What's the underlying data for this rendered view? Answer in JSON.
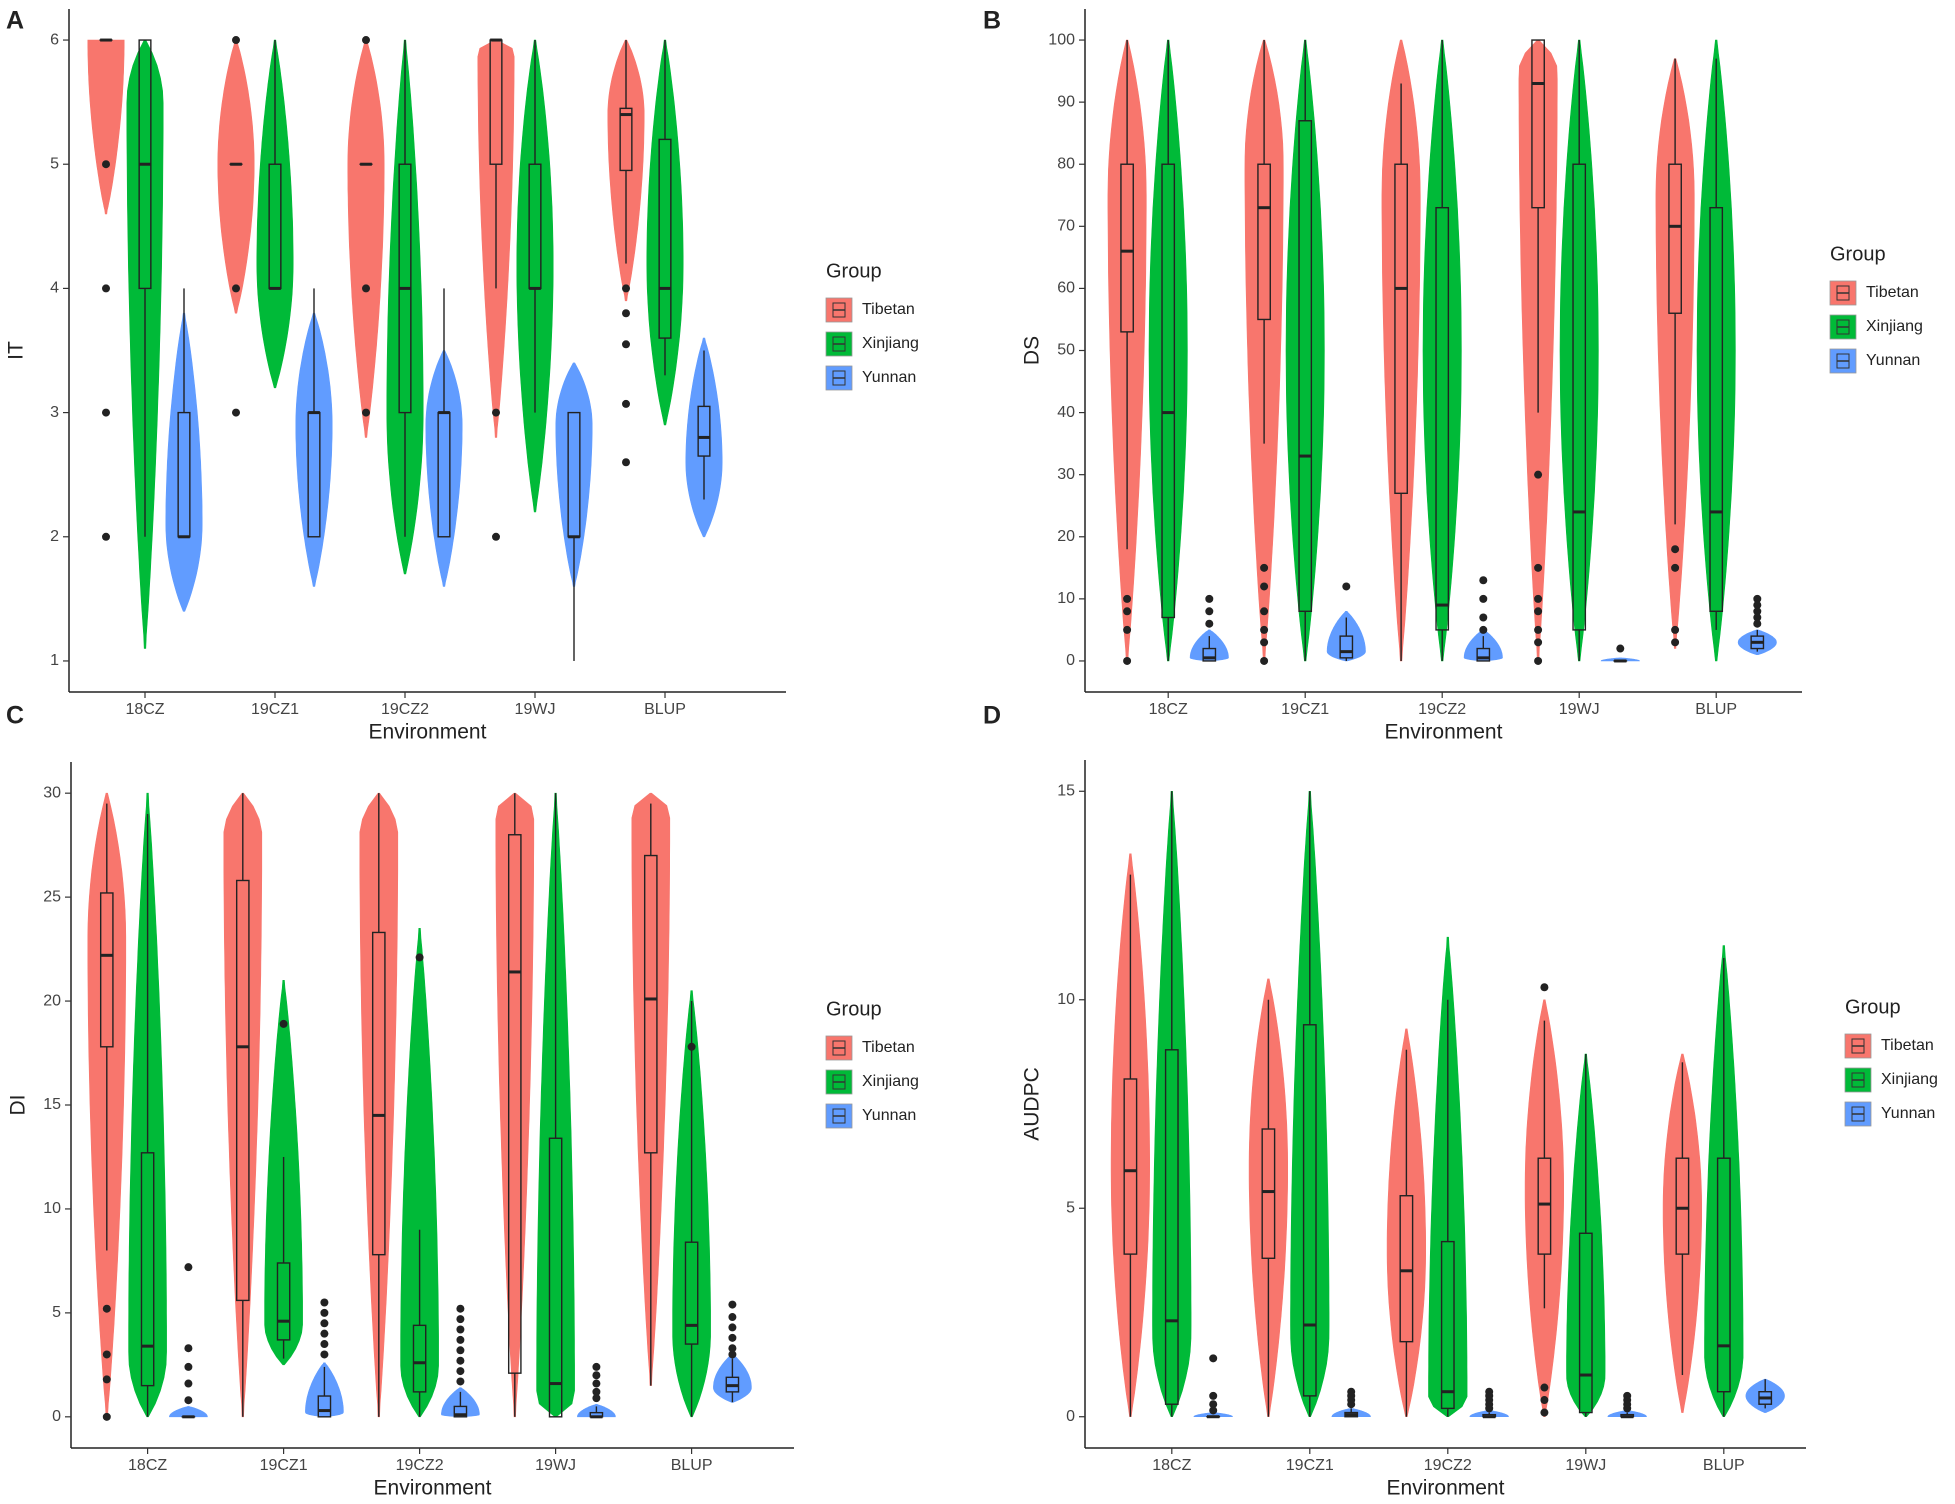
{
  "chart_data": [
    {
      "type": "violin",
      "panel_label": "A",
      "y_label": "IT",
      "x_label": "Environment",
      "legend_title": "Group",
      "categories": [
        "18CZ",
        "19CZ1",
        "19CZ2",
        "19WJ",
        "BLUP"
      ],
      "ylim": [
        0.75,
        6.25
      ],
      "yticks": [
        1,
        2,
        3,
        4,
        5,
        6
      ],
      "series": [
        {
          "name": "Tibetan",
          "color": "#f8766d",
          "min": [
            6,
            5,
            5,
            4,
            4.2
          ],
          "q1": [
            6,
            5,
            5,
            5,
            4.95
          ],
          "median": [
            6,
            5,
            5,
            6,
            5.4
          ],
          "q3": [
            6,
            5,
            5,
            6,
            5.45
          ],
          "max": [
            6,
            5,
            5,
            6,
            6
          ],
          "violin_lo": [
            4.6,
            3.8,
            2.8,
            2.8,
            3.9
          ],
          "violin_hi": [
            6,
            6,
            6,
            6,
            6
          ],
          "violin_peak": [
            6,
            5,
            5,
            5.9,
            5.4
          ],
          "outliers": [
            [
              5,
              4,
              3,
              2
            ],
            [
              6,
              4,
              3
            ],
            [
              6,
              4,
              3
            ],
            [
              3,
              2
            ],
            [
              4.0,
              3.8,
              3.55,
              3.07,
              2.6
            ]
          ]
        },
        {
          "name": "Xinjiang",
          "color": "#00ba38",
          "min": [
            2,
            4,
            2,
            3,
            3.3
          ],
          "q1": [
            4,
            4,
            3,
            4,
            3.6
          ],
          "median": [
            5,
            4,
            4,
            4,
            4.0
          ],
          "q3": [
            6,
            5,
            5,
            5,
            5.2
          ],
          "max": [
            6,
            6,
            6,
            6,
            6
          ],
          "violin_lo": [
            1.1,
            3.2,
            1.7,
            2.2,
            2.9
          ],
          "violin_hi": [
            6,
            6,
            6,
            6,
            6
          ],
          "violin_peak": [
            5.5,
            4.2,
            3,
            4.2,
            4.2
          ],
          "outliers": [
            [],
            [],
            [],
            [],
            []
          ]
        },
        {
          "name": "Yunnan",
          "color": "#619cff",
          "min": [
            2,
            2,
            2,
            1,
            2.3
          ],
          "q1": [
            2,
            2,
            2,
            2,
            2.65
          ],
          "median": [
            2,
            3,
            3,
            2,
            2.8
          ],
          "q3": [
            3,
            3,
            3,
            3,
            3.05
          ],
          "max": [
            4,
            4,
            4,
            3,
            3.5
          ],
          "violin_lo": [
            1.4,
            1.6,
            1.6,
            1.6,
            2.0
          ],
          "violin_hi": [
            3.8,
            3.8,
            3.5,
            3.4,
            3.6
          ],
          "violin_peak": [
            2.1,
            2.9,
            2.9,
            2.9,
            2.6
          ],
          "outliers": [
            [],
            [],
            [],
            [],
            []
          ]
        }
      ]
    },
    {
      "type": "violin",
      "panel_label": "B",
      "y_label": "DS",
      "x_label": "Environment",
      "legend_title": "Group",
      "categories": [
        "18CZ",
        "19CZ1",
        "19CZ2",
        "19WJ",
        "BLUP"
      ],
      "ylim": [
        -5,
        105
      ],
      "yticks": [
        0,
        10,
        20,
        30,
        40,
        50,
        60,
        70,
        80,
        90,
        100
      ],
      "series": [
        {
          "name": "Tibetan",
          "color": "#f8766d",
          "min": [
            18,
            35,
            0,
            40,
            22
          ],
          "q1": [
            53,
            55,
            27,
            73,
            56
          ],
          "median": [
            66,
            73,
            60,
            93,
            70
          ],
          "q3": [
            80,
            80,
            80,
            100,
            80
          ],
          "max": [
            100,
            100,
            93,
            100,
            97
          ],
          "violin_lo": [
            0,
            0,
            0,
            0,
            2
          ],
          "violin_hi": [
            100,
            100,
            100,
            100,
            97
          ],
          "violin_peak": [
            75,
            80,
            75,
            95,
            75
          ],
          "outliers": [
            [
              10,
              8,
              5,
              0
            ],
            [
              15,
              12,
              8,
              5,
              3,
              0
            ],
            [],
            [
              30,
              15,
              10,
              8,
              5,
              3,
              0
            ],
            [
              18,
              15,
              5,
              3
            ]
          ]
        },
        {
          "name": "Xinjiang",
          "color": "#00ba38",
          "min": [
            0,
            0,
            0,
            0,
            5
          ],
          "q1": [
            7,
            8,
            5,
            5,
            8
          ],
          "median": [
            40,
            33,
            9,
            24,
            24
          ],
          "q3": [
            80,
            87,
            73,
            80,
            73
          ],
          "max": [
            100,
            100,
            100,
            100,
            97
          ],
          "violin_lo": [
            0,
            0,
            0,
            0,
            0
          ],
          "violin_hi": [
            100,
            100,
            100,
            100,
            100
          ],
          "violin_peak": [
            50,
            50,
            50,
            50,
            50
          ],
          "outliers": [
            [],
            [],
            [],
            [],
            []
          ]
        },
        {
          "name": "Yunnan",
          "color": "#619cff",
          "min": [
            0,
            0,
            0,
            0,
            1.5
          ],
          "q1": [
            0,
            0.5,
            0,
            0,
            2
          ],
          "median": [
            0.5,
            1.5,
            0.5,
            0,
            3
          ],
          "q3": [
            2,
            4,
            2,
            0,
            4
          ],
          "max": [
            4,
            7,
            4,
            0,
            5
          ],
          "violin_lo": [
            0,
            0,
            0,
            0,
            1
          ],
          "violin_hi": [
            5,
            8,
            5,
            0.5,
            5
          ],
          "violin_peak": [
            0.5,
            1.5,
            0.5,
            0,
            3
          ],
          "outliers": [
            [
              10,
              8,
              6
            ],
            [
              12
            ],
            [
              13,
              10,
              7,
              5
            ],
            [
              2
            ],
            [
              10,
              9,
              8,
              7,
              6
            ]
          ]
        }
      ]
    },
    {
      "type": "violin",
      "panel_label": "C",
      "y_label": "DI",
      "x_label": "Environment",
      "legend_title": "Group",
      "categories": [
        "18CZ",
        "19CZ1",
        "19CZ2",
        "19WJ",
        "BLUP"
      ],
      "ylim": [
        -1.5,
        31.5
      ],
      "yticks": [
        0,
        5,
        10,
        15,
        20,
        25,
        30
      ],
      "series": [
        {
          "name": "Tibetan",
          "color": "#f8766d",
          "min": [
            8,
            0,
            0,
            0,
            1.5
          ],
          "q1": [
            17.8,
            5.6,
            7.8,
            2.1,
            12.7
          ],
          "median": [
            22.2,
            17.8,
            14.5,
            21.4,
            20.1
          ],
          "q3": [
            25.2,
            25.8,
            23.3,
            28,
            27
          ],
          "max": [
            29.5,
            30,
            30,
            30,
            29.5
          ],
          "violin_lo": [
            0,
            0,
            0,
            0,
            1.5
          ],
          "violin_hi": [
            30,
            30,
            30,
            30,
            30
          ],
          "violin_peak": [
            23,
            28,
            28,
            29,
            29
          ],
          "outliers": [
            [
              5.2,
              3,
              1.8,
              0
            ],
            [],
            [],
            [],
            []
          ]
        },
        {
          "name": "Xinjiang",
          "color": "#00ba38",
          "min": [
            0,
            2.8,
            0,
            0,
            0
          ],
          "q1": [
            1.5,
            3.7,
            1.2,
            0,
            3.5
          ],
          "median": [
            3.4,
            4.6,
            2.6,
            1.6,
            4.4
          ],
          "q3": [
            12.7,
            7.4,
            4.4,
            13.4,
            8.4
          ],
          "max": [
            29,
            12.5,
            9,
            30,
            20
          ],
          "violin_lo": [
            0,
            2.5,
            0,
            0,
            0
          ],
          "violin_hi": [
            30,
            21,
            23.5,
            30,
            20.5
          ],
          "violin_peak": [
            3,
            4.5,
            2.5,
            1,
            4
          ],
          "outliers": [
            [],
            [
              18.9
            ],
            [
              22.1
            ],
            [],
            [
              17.8
            ]
          ]
        },
        {
          "name": "Yunnan",
          "color": "#619cff",
          "min": [
            0,
            0,
            0,
            0,
            0.7
          ],
          "q1": [
            0,
            0,
            0,
            0,
            1.2
          ],
          "median": [
            0,
            0.3,
            0.1,
            0,
            1.5
          ],
          "q3": [
            0,
            1,
            0.5,
            0.2,
            1.9
          ],
          "max": [
            0,
            2.4,
            1.2,
            0.5,
            2.8
          ],
          "violin_lo": [
            0,
            0,
            0,
            0,
            0.7
          ],
          "violin_hi": [
            0.5,
            2.6,
            1.4,
            0.6,
            3
          ],
          "violin_peak": [
            0,
            0.2,
            0.1,
            0,
            1.4
          ],
          "outliers": [
            [
              7.2,
              3.3,
              2.4,
              1.6,
              0.8
            ],
            [
              5.5,
              5,
              4.5,
              4,
              3.5,
              3
            ],
            [
              5.2,
              4.7,
              4.2,
              3.7,
              3.2,
              2.7,
              2.2,
              1.7
            ],
            [
              2.4,
              2,
              1.6,
              1.2,
              0.9
            ],
            [
              5.4,
              4.8,
              4.3,
              3.8,
              3.3,
              3
            ]
          ]
        }
      ]
    },
    {
      "type": "violin",
      "panel_label": "D",
      "y_label": "AUDPC",
      "x_label": "Environment",
      "legend_title": "Group",
      "categories": [
        "18CZ",
        "19CZ1",
        "19CZ2",
        "19WJ",
        "BLUP"
      ],
      "ylim": [
        -0.75,
        15.75
      ],
      "yticks": [
        0,
        5,
        10,
        15
      ],
      "series": [
        {
          "name": "Tibetan",
          "color": "#f8766d",
          "min": [
            0,
            0,
            0,
            2.6,
            1.0
          ],
          "q1": [
            3.9,
            3.8,
            1.8,
            3.9,
            3.9
          ],
          "median": [
            5.9,
            5.4,
            3.5,
            5.1,
            5.0
          ],
          "q3": [
            8.1,
            6.9,
            5.3,
            6.2,
            6.2
          ],
          "max": [
            13,
            10,
            8.8,
            9.5,
            8.5
          ],
          "violin_lo": [
            0,
            0,
            0,
            0,
            0.1
          ],
          "violin_hi": [
            13.5,
            10.5,
            9.3,
            10,
            8.7
          ],
          "violin_peak": [
            6,
            6,
            4,
            5.5,
            5
          ],
          "outliers": [
            [],
            [],
            [],
            [
              10.3,
              0.7,
              0.4,
              0.1
            ],
            []
          ]
        },
        {
          "name": "Xinjiang",
          "color": "#00ba38",
          "min": [
            0,
            0,
            0,
            0,
            0
          ],
          "q1": [
            0.3,
            0.5,
            0.2,
            0.1,
            0.6
          ],
          "median": [
            2.3,
            2.2,
            0.6,
            1.0,
            1.7
          ],
          "q3": [
            8.8,
            9.4,
            4.2,
            4.4,
            6.2
          ],
          "max": [
            15,
            15,
            10,
            8.7,
            11
          ],
          "violin_lo": [
            0,
            0,
            0,
            0,
            0
          ],
          "violin_hi": [
            15,
            15,
            11.5,
            8.7,
            11.3
          ],
          "violin_peak": [
            2,
            2,
            0.5,
            1,
            1.5
          ],
          "outliers": [
            [],
            [],
            [],
            [],
            []
          ]
        },
        {
          "name": "Yunnan",
          "color": "#619cff",
          "min": [
            0,
            0,
            0,
            0,
            0.2
          ],
          "q1": [
            0,
            0,
            0,
            0,
            0.3
          ],
          "median": [
            0,
            0.05,
            0,
            0,
            0.45
          ],
          "q3": [
            0,
            0.1,
            0.05,
            0.05,
            0.6
          ],
          "max": [
            0,
            0.2,
            0.1,
            0.1,
            0.9
          ],
          "violin_lo": [
            0,
            0,
            0,
            0,
            0.1
          ],
          "violin_hi": [
            0.1,
            0.2,
            0.15,
            0.15,
            0.9
          ],
          "violin_peak": [
            0,
            0,
            0,
            0,
            0.5
          ],
          "outliers": [
            [
              1.4,
              0.5,
              0.3,
              0.15
            ],
            [
              0.6,
              0.5,
              0.4,
              0.3
            ],
            [
              0.6,
              0.5,
              0.4,
              0.3,
              0.2
            ],
            [
              0.5,
              0.4,
              0.3,
              0.2
            ],
            []
          ]
        }
      ]
    }
  ]
}
